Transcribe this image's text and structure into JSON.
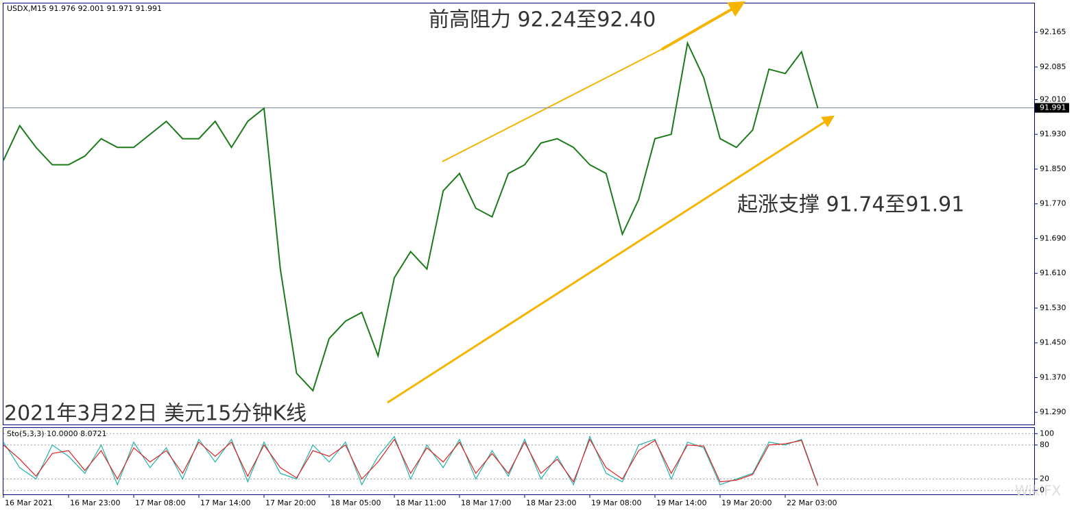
{
  "chart_data": {
    "type": "line",
    "header": {
      "symbol": "USDX,M15",
      "ohlc": [
        91.976,
        92.001,
        91.971,
        91.991
      ]
    },
    "annotations": [
      "前高阻力 92.24至92.40",
      "起涨支撑 91.74至91.91",
      "2021年3月22日 美元15分钟K线"
    ],
    "watermark": "WikiFX",
    "last_price": 91.991,
    "categories": [
      "16 Mar 2021",
      null,
      null,
      null,
      "16 Mar 23:00",
      null,
      null,
      null,
      "17 Mar 08:00",
      null,
      null,
      null,
      "17 Mar 14:00",
      null,
      null,
      null,
      "17 Mar 20:00",
      null,
      null,
      null,
      "18 Mar 05:00",
      null,
      null,
      null,
      "18 Mar 11:00",
      null,
      null,
      null,
      "18 Mar 17:00",
      null,
      null,
      null,
      "18 Mar 23:00",
      null,
      null,
      null,
      "19 Mar 08:00",
      null,
      null,
      null,
      "19 Mar 14:00",
      null,
      null,
      null,
      "19 Mar 20:00",
      null,
      null,
      null,
      "22 Mar 03:00",
      null,
      null
    ],
    "series": [
      {
        "color": "#1a7a1a",
        "values": [
          91.87,
          91.95,
          91.9,
          91.86,
          91.86,
          91.88,
          91.92,
          91.9,
          91.9,
          91.93,
          91.96,
          91.92,
          91.92,
          91.96,
          91.9,
          91.96,
          91.99,
          91.62,
          91.38,
          91.34,
          91.46,
          91.5,
          91.52,
          91.42,
          91.6,
          91.66,
          91.62,
          91.8,
          91.84,
          91.76,
          91.74,
          91.84,
          91.86,
          91.91,
          91.92,
          91.9,
          91.86,
          91.84,
          91.7,
          91.78,
          91.92,
          91.93,
          92.14,
          92.06,
          91.92,
          91.9,
          91.94,
          92.08,
          92.07,
          92.12,
          91.99
        ]
      }
    ],
    "ylim": [
      91.262,
      92.233
    ],
    "yticks": [
      92.165,
      92.085,
      {
        "value": 92.01,
        "label": "92.010"
      },
      {
        "value": 91.93,
        "label": "91.930"
      },
      {
        "value": 91.85,
        "label": "91.850"
      },
      {
        "value": 91.77,
        "label": "91.770"
      },
      {
        "value": 91.69,
        "label": "91.690"
      },
      {
        "value": 91.61,
        "label": "91.610"
      },
      {
        "value": 91.53,
        "label": "91.530"
      },
      {
        "value": 91.45,
        "label": "91.450"
      },
      {
        "value": 91.37,
        "label": "91.370"
      },
      {
        "value": 91.29,
        "label": "91.290"
      }
    ],
    "stochastic": {
      "header": [
        "Sto(5,3,3)",
        "10.0000",
        "8.0721"
      ],
      "ylim": [
        -7,
        110
      ],
      "yticks": [
        100,
        80,
        20,
        0
      ],
      "series": [
        {
          "color": "#20b2aa",
          "values": [
            85,
            40,
            20,
            80,
            60,
            30,
            80,
            10,
            85,
            40,
            75,
            20,
            90,
            50,
            90,
            15,
            85,
            30,
            20,
            80,
            50,
            85,
            10,
            60,
            95,
            20,
            80,
            40,
            90,
            20,
            70,
            25,
            90,
            20,
            60,
            10,
            95,
            30,
            15,
            80,
            90,
            20,
            85,
            75,
            10,
            20,
            30,
            85,
            80,
            90,
            10
          ]
        },
        {
          "color": "#e02020",
          "values": [
            80,
            55,
            25,
            65,
            70,
            35,
            70,
            20,
            75,
            50,
            70,
            30,
            85,
            60,
            85,
            25,
            80,
            40,
            22,
            70,
            60,
            80,
            20,
            50,
            90,
            30,
            75,
            50,
            85,
            30,
            65,
            30,
            85,
            30,
            55,
            15,
            90,
            40,
            20,
            70,
            88,
            30,
            80,
            78,
            15,
            18,
            28,
            80,
            82,
            88,
            8
          ]
        }
      ]
    }
  }
}
